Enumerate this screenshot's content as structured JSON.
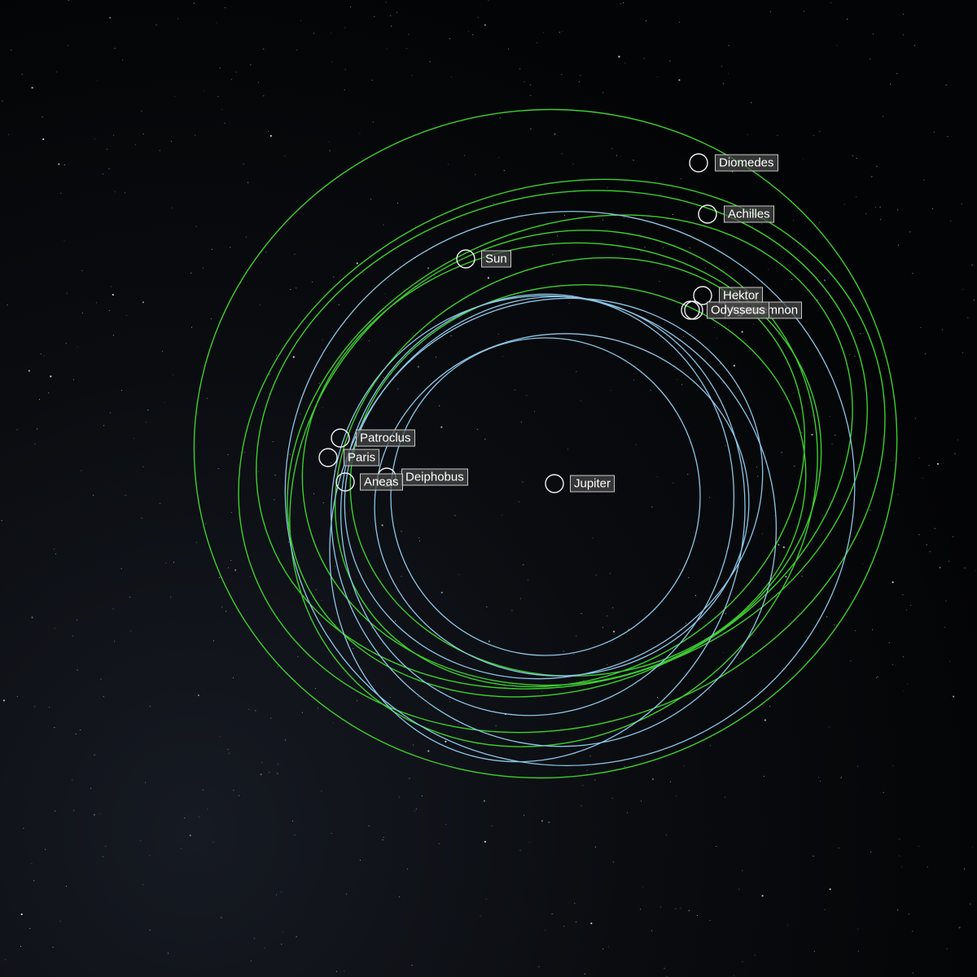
{
  "bodies": [
    {
      "label": "Diomedes"
    },
    {
      "label": "Achilles"
    },
    {
      "label": "Sun"
    },
    {
      "label": "Hektor"
    },
    {
      "label": "Agamemnon"
    },
    {
      "label": "Odysseus"
    },
    {
      "label": "Patroclus"
    },
    {
      "label": "Paris"
    },
    {
      "label": "Deiphobus"
    },
    {
      "label": "Aneas"
    },
    {
      "label": "Jupiter"
    }
  ]
}
